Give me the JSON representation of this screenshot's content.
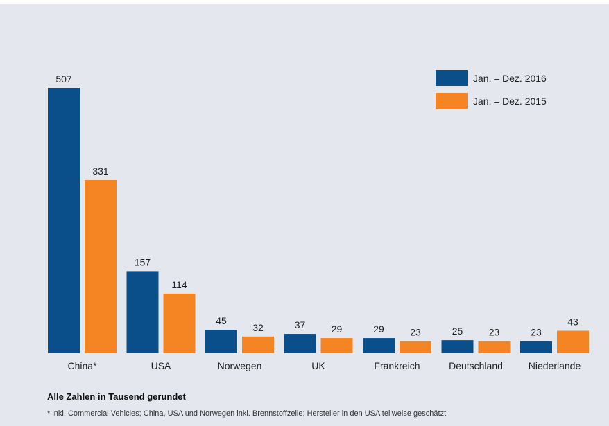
{
  "chart_data": {
    "type": "bar",
    "categories": [
      "China*",
      "USA",
      "Norwegen",
      "UK",
      "Frankreich",
      "Deutschland",
      "Niederlande"
    ],
    "series": [
      {
        "name": "Jan. – Dez. 2016",
        "color": "#0a4f8a",
        "values": [
          507,
          157,
          45,
          37,
          29,
          25,
          23
        ]
      },
      {
        "name": "Jan. – Dez. 2015",
        "color": "#f58422",
        "values": [
          331,
          114,
          32,
          29,
          23,
          23,
          43
        ]
      }
    ],
    "ylim": [
      0,
      507
    ],
    "grid": false,
    "legend": "top-right"
  },
  "note": "Alle Zahlen in Tausend gerundet",
  "footnote": "* inkl. Commercial Vehicles; China, USA und Norwegen inkl. Brennstoffzelle; Hersteller in den USA teilweise geschätzt"
}
